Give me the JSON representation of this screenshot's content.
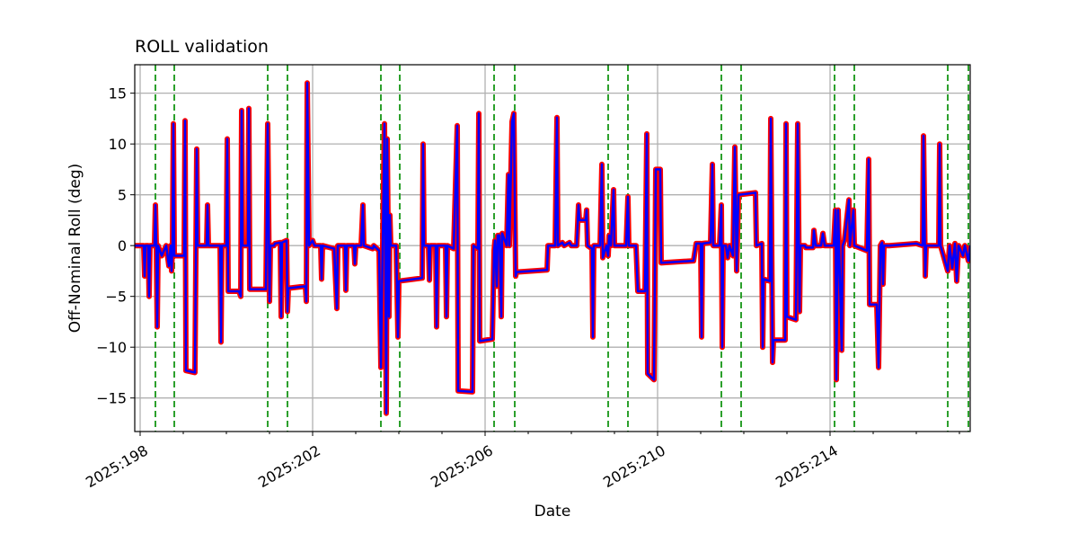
{
  "chart_data": {
    "type": "line",
    "title": "ROLL validation",
    "xlabel": "Date",
    "ylabel": "Off-Nominal Roll (deg)",
    "x_unit": "hours since 2025:198",
    "xlim_hours": [
      -3,
      462
    ],
    "ylim": [
      -18.3,
      17.8
    ],
    "grid": true,
    "x_ticks": [
      {
        "day": 198,
        "label": "2025:198"
      },
      {
        "day": 202,
        "label": "2025:202"
      },
      {
        "day": 206,
        "label": "2025:206"
      },
      {
        "day": 210,
        "label": "2025:210"
      },
      {
        "day": 214,
        "label": "2025:214"
      }
    ],
    "x_minor_days": [
      199,
      200,
      201,
      203,
      204,
      205,
      207,
      208,
      209,
      211,
      212,
      213,
      215,
      216,
      217
    ],
    "y_ticks": [
      15,
      10,
      5,
      0,
      -5,
      -10,
      -15
    ],
    "y_tick_labels": [
      "15",
      "10",
      "5",
      "0",
      "−5",
      "−10",
      "−15"
    ],
    "colors": {
      "red": "#ff0000",
      "blue": "#0000ff",
      "green": "#2ca02c",
      "grid": "#b0b0b0"
    },
    "vertical_markers_hours": [
      8.5,
      19,
      71,
      82,
      134,
      144.5,
      197,
      208.5,
      260.5,
      271.5,
      323.5,
      334.5,
      386.5,
      397.5,
      449.5,
      461
    ],
    "series": [
      {
        "name": "red",
        "color": "#ff0000"
      },
      {
        "name": "blue",
        "color": "#0000ff"
      }
    ],
    "points": [
      [
        -3,
        0
      ],
      [
        2,
        0
      ],
      [
        2.5,
        -3
      ],
      [
        3,
        0
      ],
      [
        4.5,
        0
      ],
      [
        5,
        -5
      ],
      [
        5.5,
        0
      ],
      [
        8,
        0
      ],
      [
        8.5,
        4
      ],
      [
        9,
        0
      ],
      [
        9.5,
        -8
      ],
      [
        10,
        0
      ],
      [
        12,
        -1
      ],
      [
        14.5,
        0
      ],
      [
        16,
        -2
      ],
      [
        17,
        0
      ],
      [
        17.5,
        -2.5
      ],
      [
        18,
        0
      ],
      [
        18.5,
        12
      ],
      [
        19,
        -1
      ],
      [
        24.5,
        -1
      ],
      [
        25,
        12.3
      ],
      [
        25.5,
        -12.3
      ],
      [
        30.5,
        -12.5
      ],
      [
        31.5,
        9.5
      ],
      [
        32,
        0
      ],
      [
        37,
        0
      ],
      [
        37.5,
        4
      ],
      [
        38,
        0
      ],
      [
        44.5,
        0
      ],
      [
        45,
        -9.5
      ],
      [
        45.5,
        0
      ],
      [
        48,
        0
      ],
      [
        48.5,
        10.5
      ],
      [
        49,
        -4.5
      ],
      [
        55,
        -4.5
      ],
      [
        56,
        -5
      ],
      [
        56.5,
        13.3
      ],
      [
        57,
        0
      ],
      [
        60,
        0
      ],
      [
        60.5,
        13.5
      ],
      [
        61,
        -4.3
      ],
      [
        70,
        -4.3
      ],
      [
        71,
        12
      ],
      [
        72,
        -5.5
      ],
      [
        72.5,
        0
      ],
      [
        74.5,
        0
      ],
      [
        75,
        0.2
      ],
      [
        78,
        0.3
      ],
      [
        78.5,
        -7
      ],
      [
        79,
        0.3
      ],
      [
        81.5,
        0.5
      ],
      [
        82,
        -6.5
      ],
      [
        82.5,
        -4.2
      ],
      [
        92,
        -4
      ],
      [
        92.5,
        -5.5
      ],
      [
        93,
        16
      ],
      [
        94,
        0
      ],
      [
        96,
        0.5
      ],
      [
        97,
        0
      ],
      [
        100.5,
        0
      ],
      [
        101,
        -3.3
      ],
      [
        101.5,
        0
      ],
      [
        108,
        -0.3
      ],
      [
        109.5,
        -6.2
      ],
      [
        110,
        0
      ],
      [
        114,
        0
      ],
      [
        114.5,
        -4.4
      ],
      [
        115,
        0
      ],
      [
        119,
        0
      ],
      [
        119.5,
        -1.8
      ],
      [
        120,
        0
      ],
      [
        123,
        0
      ],
      [
        124,
        4
      ],
      [
        124.5,
        0
      ],
      [
        129.5,
        -0.3
      ],
      [
        130,
        0
      ],
      [
        133,
        -0.5
      ],
      [
        134,
        -12
      ],
      [
        135,
        0
      ],
      [
        136,
        12
      ],
      [
        137,
        -16.5
      ],
      [
        137.5,
        10.5
      ],
      [
        138.5,
        -7
      ],
      [
        139,
        3
      ],
      [
        139.5,
        0
      ],
      [
        142.5,
        0
      ],
      [
        143.5,
        -9
      ],
      [
        144,
        -3.5
      ],
      [
        157,
        -3.2
      ],
      [
        157.5,
        10
      ],
      [
        158,
        0
      ],
      [
        160.5,
        0
      ],
      [
        161,
        -3.4
      ],
      [
        161.5,
        0
      ],
      [
        164.5,
        0
      ],
      [
        165,
        -8
      ],
      [
        165.5,
        0
      ],
      [
        170,
        0
      ],
      [
        170.5,
        -7
      ],
      [
        171,
        0
      ],
      [
        174.5,
        -0.3
      ],
      [
        176.5,
        11.8
      ],
      [
        177,
        -14.3
      ],
      [
        185,
        -14.4
      ],
      [
        185.5,
        0
      ],
      [
        188,
        -0.3
      ],
      [
        188.5,
        13
      ],
      [
        189,
        -9.4
      ],
      [
        196,
        -9.2
      ],
      [
        197,
        -0.5
      ],
      [
        197.5,
        0.5
      ],
      [
        198.5,
        -4
      ],
      [
        199,
        1
      ],
      [
        200,
        1
      ],
      [
        201,
        -7
      ],
      [
        201.5,
        1.2
      ],
      [
        204,
        0
      ],
      [
        205,
        7
      ],
      [
        205.5,
        0
      ],
      [
        207,
        12.2
      ],
      [
        208,
        13
      ],
      [
        209,
        -3
      ],
      [
        209.5,
        -2.6
      ],
      [
        226.5,
        -2.4
      ],
      [
        227,
        0
      ],
      [
        231,
        0
      ],
      [
        232,
        12.6
      ],
      [
        232.5,
        0
      ],
      [
        235,
        0.3
      ],
      [
        236,
        0
      ],
      [
        239,
        0.3
      ],
      [
        240,
        0
      ],
      [
        243,
        0
      ],
      [
        244,
        4
      ],
      [
        244.5,
        2.5
      ],
      [
        248,
        2.5
      ],
      [
        248.5,
        3.5
      ],
      [
        249,
        0
      ],
      [
        251.5,
        -0.3
      ],
      [
        252,
        -9
      ],
      [
        252.5,
        0
      ],
      [
        256,
        0
      ],
      [
        257,
        8
      ],
      [
        257.5,
        -1.2
      ],
      [
        259.5,
        0
      ],
      [
        260.5,
        -1
      ],
      [
        261,
        1
      ],
      [
        262,
        0
      ],
      [
        263.5,
        5.5
      ],
      [
        264,
        0
      ],
      [
        270.5,
        0
      ],
      [
        271.5,
        4.8
      ],
      [
        272,
        0
      ],
      [
        276,
        0
      ],
      [
        277,
        -4.5
      ],
      [
        281,
        -4.5
      ],
      [
        282,
        11
      ],
      [
        282.5,
        -12.6
      ],
      [
        286,
        -13.2
      ],
      [
        287,
        7.5
      ],
      [
        289.5,
        7.5
      ],
      [
        290,
        -1.7
      ],
      [
        308,
        -1.5
      ],
      [
        309.5,
        0.2
      ],
      [
        312,
        0.2
      ],
      [
        312.5,
        -9
      ],
      [
        313,
        0.2
      ],
      [
        317.5,
        0.3
      ],
      [
        318.5,
        8
      ],
      [
        319,
        0
      ],
      [
        322.5,
        0
      ],
      [
        323.5,
        4
      ],
      [
        324,
        -10
      ],
      [
        324.5,
        0
      ],
      [
        326,
        0
      ],
      [
        327,
        -1.2
      ],
      [
        328,
        0
      ],
      [
        330,
        -1
      ],
      [
        331,
        9.7
      ],
      [
        332,
        -2.5
      ],
      [
        333,
        5
      ],
      [
        342.5,
        5.2
      ],
      [
        343,
        0
      ],
      [
        346,
        0.2
      ],
      [
        346.5,
        -10
      ],
      [
        347,
        -3.3
      ],
      [
        350.5,
        -3.5
      ],
      [
        351,
        12.5
      ],
      [
        352,
        -11.5
      ],
      [
        352.5,
        -9.3
      ],
      [
        359,
        -9.3
      ],
      [
        359.5,
        12
      ],
      [
        360,
        -7
      ],
      [
        365,
        -7.3
      ],
      [
        366,
        12
      ],
      [
        367,
        -6.5
      ],
      [
        367.5,
        0
      ],
      [
        370,
        0
      ],
      [
        370.5,
        -0.2
      ],
      [
        374.5,
        -0.2
      ],
      [
        375,
        1.5
      ],
      [
        376,
        0
      ],
      [
        379,
        0
      ],
      [
        380,
        1.2
      ],
      [
        381,
        0
      ],
      [
        386,
        0
      ],
      [
        387,
        3.5
      ],
      [
        387.5,
        -13.2
      ],
      [
        388.5,
        3.5
      ],
      [
        390.5,
        -10.3
      ],
      [
        391,
        0
      ],
      [
        392,
        0.5
      ],
      [
        394.5,
        4.5
      ],
      [
        395,
        0
      ],
      [
        397,
        3.5
      ],
      [
        397.5,
        0
      ],
      [
        404.5,
        -0.5
      ],
      [
        405.5,
        8.5
      ],
      [
        406,
        -5.8
      ],
      [
        410,
        -5.8
      ],
      [
        411,
        -12
      ],
      [
        412,
        0
      ],
      [
        413,
        0.3
      ],
      [
        413.5,
        -3.8
      ],
      [
        414,
        0
      ],
      [
        417,
        0
      ],
      [
        432,
        0.2
      ],
      [
        435.5,
        0
      ],
      [
        436,
        10.8
      ],
      [
        437,
        -3
      ],
      [
        437.5,
        0
      ],
      [
        444.5,
        0
      ],
      [
        445,
        10
      ],
      [
        445.5,
        0
      ],
      [
        449.5,
        -2.5
      ],
      [
        450.5,
        0
      ],
      [
        452,
        -2.2
      ],
      [
        453.5,
        0.2
      ],
      [
        454.5,
        -3.5
      ],
      [
        455.5,
        0
      ],
      [
        458,
        -1
      ],
      [
        459,
        0
      ],
      [
        461,
        -1.5
      ],
      [
        462,
        0
      ]
    ]
  }
}
